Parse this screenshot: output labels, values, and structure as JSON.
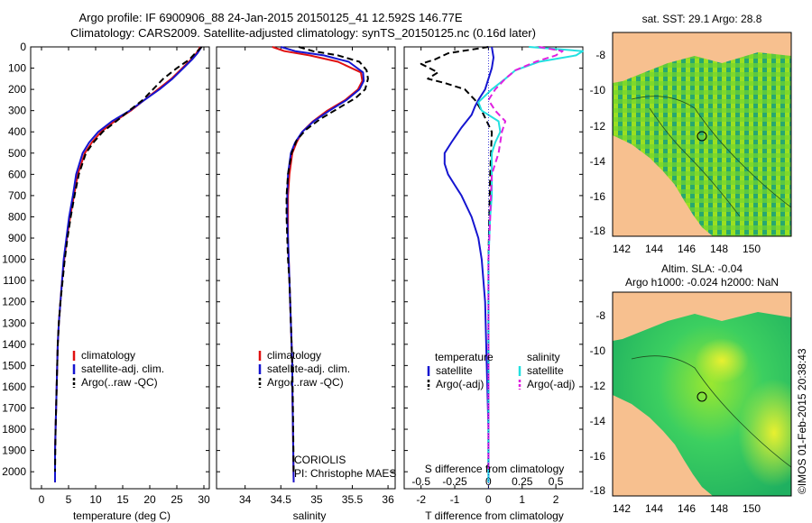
{
  "header": {
    "title_line1": "Argo profile: IF 6900906_88 24-Jan-2015 20150125_41 12.592S 146.77E",
    "title_line2": "Climatology: CARS2009. Satellite-adjusted climatology: synTS_20150125.nc (0.16d later)"
  },
  "colors": {
    "climatology": "#e01010",
    "satellite": "#1515d0",
    "argo": "#000000",
    "sal_satellite": "#22e0e0",
    "sal_argo": "#e020e0",
    "land": "#f7c08f"
  },
  "chart_data": [
    {
      "type": "line",
      "xlabel": "temperature (deg C)",
      "ylabel": "",
      "xlim": [
        -2,
        31
      ],
      "ylim": [
        2080,
        0
      ],
      "xticks": [
        0,
        5,
        10,
        15,
        20,
        25,
        30
      ],
      "yticks": [
        0,
        100,
        200,
        300,
        400,
        500,
        600,
        700,
        800,
        900,
        1000,
        1100,
        1200,
        1300,
        1400,
        1500,
        1600,
        1700,
        1800,
        1900,
        2000
      ],
      "legend": [
        "climatology",
        "satellite-adj. clim.",
        "Argo(..raw -QC)"
      ],
      "series": [
        {
          "name": "climatology",
          "style": "solid",
          "x": [
            29.3,
            29.1,
            28.6,
            27.6,
            26.0,
            24.0,
            21.5,
            19.0,
            16.5,
            13.5,
            11.0,
            9.3,
            8.0,
            6.7,
            6.0,
            5.3,
            4.7,
            4.2,
            3.8,
            3.5,
            3.2,
            3.0,
            2.9,
            2.8,
            2.7,
            2.6,
            2.5,
            2.5
          ],
          "y": [
            0,
            10,
            30,
            60,
            100,
            150,
            200,
            250,
            300,
            350,
            400,
            450,
            500,
            600,
            700,
            800,
            900,
            1000,
            1100,
            1200,
            1300,
            1400,
            1500,
            1600,
            1700,
            1800,
            1900,
            2050
          ]
        },
        {
          "name": "satellite-adj. clim.",
          "style": "solid",
          "x": [
            29.5,
            29.3,
            28.8,
            27.8,
            26.2,
            24.2,
            21.8,
            19.0,
            16.3,
            13.0,
            10.5,
            8.8,
            7.6,
            6.4,
            5.8,
            5.1,
            4.6,
            4.1,
            3.8,
            3.5,
            3.2,
            3.0,
            2.9,
            2.8,
            2.7,
            2.6,
            2.5,
            2.5
          ],
          "y": [
            0,
            10,
            30,
            60,
            100,
            150,
            200,
            250,
            300,
            350,
            400,
            450,
            500,
            600,
            700,
            800,
            900,
            1000,
            1100,
            1200,
            1300,
            1400,
            1500,
            1600,
            1700,
            1800,
            1900,
            2050
          ]
        },
        {
          "name": "Argo(..raw -QC)",
          "style": "dashed",
          "x": [
            29.6,
            29.2,
            28.4,
            27.3,
            25.0,
            22.5,
            20.6,
            18.7,
            16.2,
            13.8,
            11.3,
            9.6,
            8.2,
            6.9,
            6.1,
            5.4,
            4.8,
            4.3,
            3.9,
            3.5,
            3.2,
            3.0,
            2.9,
            2.8,
            2.7,
            2.6,
            2.5
          ],
          "y": [
            0,
            10,
            30,
            60,
            100,
            150,
            200,
            250,
            300,
            350,
            400,
            450,
            500,
            600,
            700,
            800,
            900,
            1000,
            1100,
            1200,
            1300,
            1400,
            1500,
            1600,
            1700,
            1800,
            2000
          ]
        }
      ]
    },
    {
      "type": "line",
      "xlabel": "salinity",
      "xlim": [
        33.6,
        36.1
      ],
      "ylim": [
        2080,
        0
      ],
      "xticks": [
        34,
        34.5,
        35,
        35.5,
        36
      ],
      "legend": [
        "climatology",
        "satellite-adj. clim.",
        "Argo(..raw -QC)"
      ],
      "annotations": [
        "CORIOLIS",
        "PI: Christophe MAES"
      ],
      "series": [
        {
          "name": "climatology",
          "style": "solid",
          "x": [
            34.38,
            34.55,
            34.9,
            35.3,
            35.62,
            35.64,
            35.58,
            35.4,
            35.15,
            34.95,
            34.8,
            34.72,
            34.66,
            34.62,
            34.6,
            34.6,
            34.6,
            34.61,
            34.62,
            34.63,
            34.64,
            34.65,
            34.66,
            34.66,
            34.67,
            34.68
          ],
          "y": [
            0,
            20,
            40,
            70,
            120,
            160,
            200,
            250,
            300,
            350,
            400,
            450,
            500,
            600,
            700,
            800,
            900,
            1000,
            1100,
            1200,
            1300,
            1400,
            1500,
            1600,
            1800,
            2050
          ]
        },
        {
          "name": "satellite-adj. clim.",
          "style": "solid",
          "x": [
            34.5,
            34.7,
            35.1,
            35.45,
            35.65,
            35.66,
            35.6,
            35.42,
            35.18,
            34.96,
            34.8,
            34.7,
            34.64,
            34.6,
            34.59,
            34.59,
            34.6,
            34.61,
            34.62,
            34.63,
            34.64,
            34.65,
            34.66,
            34.66,
            34.67,
            34.68
          ],
          "y": [
            0,
            20,
            40,
            70,
            120,
            160,
            200,
            250,
            300,
            350,
            400,
            450,
            500,
            600,
            700,
            800,
            900,
            1000,
            1100,
            1200,
            1300,
            1400,
            1500,
            1600,
            1800,
            2050
          ]
        },
        {
          "name": "Argo(..raw -QC)",
          "style": "dashed",
          "x": [
            34.75,
            34.95,
            35.3,
            35.6,
            35.7,
            35.72,
            35.68,
            35.55,
            35.3,
            35.05,
            34.85,
            34.72,
            34.65,
            34.6,
            34.58,
            34.58,
            34.59,
            34.6,
            34.62,
            34.63,
            34.64,
            34.65,
            34.66,
            34.67,
            34.68
          ],
          "y": [
            0,
            20,
            40,
            70,
            110,
            150,
            200,
            240,
            290,
            340,
            390,
            440,
            500,
            600,
            700,
            800,
            900,
            1000,
            1100,
            1200,
            1300,
            1400,
            1500,
            1700,
            2000
          ]
        }
      ]
    },
    {
      "type": "line",
      "xlabel": "T difference from climatology",
      "xlabel_top": "S difference from climatology",
      "xlim": [
        -2.5,
        2.8
      ],
      "ylim": [
        2080,
        0
      ],
      "xticks_bottom": [
        -2,
        -1,
        0,
        1,
        2
      ],
      "xticks_top": [
        "-0.5",
        "-0.25",
        "0",
        "0.25",
        "0.5"
      ],
      "legend_headers": [
        "temperature",
        "salinity"
      ],
      "legend": [
        "satellite",
        "Argo(-adj)",
        "satellite",
        "Argo(-adj)"
      ],
      "series": [
        {
          "name": "satellite",
          "quantity": "temperature",
          "style": "solid",
          "color": "#1515d0",
          "x": [
            0.1,
            0.15,
            0.1,
            0.0,
            -0.1,
            -0.3,
            -0.4,
            -0.5,
            -0.8,
            -1.1,
            -1.3,
            -1.3,
            -1.2,
            -1.0,
            -0.8,
            -0.5,
            -0.3,
            -0.2,
            -0.1,
            -0.05,
            0,
            0
          ],
          "y": [
            0,
            50,
            100,
            150,
            200,
            250,
            280,
            320,
            380,
            450,
            500,
            550,
            600,
            650,
            700,
            800,
            900,
            1000,
            1200,
            1500,
            1800,
            2050
          ]
        },
        {
          "name": "Argo(-adj)",
          "quantity": "temperature",
          "style": "dashed",
          "color": "#000000",
          "x": [
            0.0,
            -1.2,
            -1.6,
            -2.0,
            -1.5,
            -1.8,
            -1.3,
            -0.7,
            -0.4,
            -0.2,
            0.1,
            0.05,
            0,
            0
          ],
          "y": [
            0,
            30,
            60,
            80,
            120,
            150,
            170,
            200,
            250,
            300,
            400,
            600,
            1000,
            2000
          ]
        },
        {
          "name": "satellite",
          "quantity": "salinity",
          "style": "solid",
          "color": "#22e0e0",
          "x": [
            1.2,
            2.8,
            2.6,
            1.5,
            0.8,
            0.5,
            0.1,
            -0.3,
            -0.2,
            0.3,
            0.35,
            0.2,
            0.1,
            0.1,
            0.1,
            0.05,
            0.0,
            0.0,
            0.0
          ],
          "y": [
            0,
            20,
            40,
            70,
            110,
            150,
            200,
            260,
            300,
            350,
            400,
            450,
            500,
            600,
            700,
            800,
            1000,
            1500,
            2050
          ]
        },
        {
          "name": "Argo(-adj)",
          "quantity": "salinity",
          "style": "dashed",
          "color": "#e020e0",
          "x": [
            1.5,
            2.2,
            2.0,
            1.4,
            0.8,
            0.5,
            0.2,
            0.0,
            0.2,
            0.5,
            0.4,
            0.3,
            0.1,
            0.05,
            0.0,
            0.0
          ],
          "y": [
            0,
            20,
            40,
            70,
            110,
            150,
            200,
            250,
            300,
            350,
            400,
            500,
            600,
            800,
            1000,
            2000
          ]
        }
      ]
    }
  ],
  "maps": {
    "sst": {
      "title": "sat. SST: 29.1 Argo: 28.8",
      "xticks": [
        "142",
        "144",
        "146",
        "148",
        "150"
      ],
      "yticks": [
        "-8",
        "-10",
        "-12",
        "-14",
        "-16",
        "-18"
      ]
    },
    "sla": {
      "title_line1": "Altim. SLA: -0.04",
      "title_line2": "Argo h1000: -0.024 h2000: NaN",
      "xticks": [
        "142",
        "144",
        "146",
        "148",
        "150"
      ],
      "yticks": [
        "-8",
        "-10",
        "-12",
        "-14",
        "-16",
        "-18"
      ]
    }
  },
  "footer": {
    "credit": "©IMOS 01-Feb-2015 20:38:43"
  }
}
